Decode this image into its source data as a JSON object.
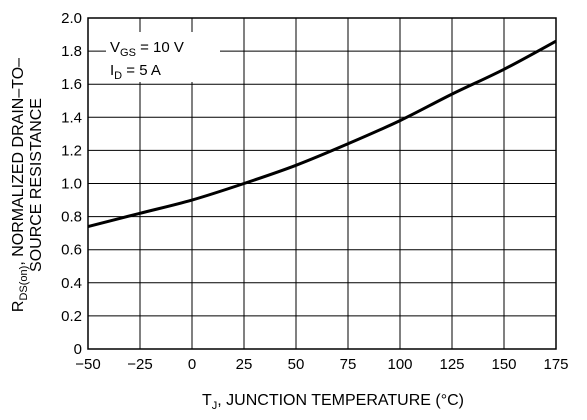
{
  "chart_data": {
    "type": "line",
    "xlabel": {
      "main": "T",
      "sub": "J",
      "rest": ", JUNCTION TEMPERATURE (°C)"
    },
    "ylabel": {
      "line1_main": "R",
      "line1_sub": "DS(on)",
      "line1_rest": ", NORMALIZED DRAIN–TO–",
      "line2": "SOURCE RESISTANCE"
    },
    "xlim": [
      -50,
      175
    ],
    "ylim": [
      0,
      2.0
    ],
    "x_ticks": [
      -50,
      -25,
      0,
      25,
      50,
      75,
      100,
      125,
      150,
      175
    ],
    "x_tick_labels": [
      "−50",
      "−25",
      "0",
      "25",
      "50",
      "75",
      "100",
      "125",
      "150",
      "175"
    ],
    "y_ticks": [
      0,
      0.2,
      0.4,
      0.6,
      0.8,
      1.0,
      1.2,
      1.4,
      1.6,
      1.8,
      2.0
    ],
    "y_tick_labels": [
      "0",
      "0.2",
      "0.4",
      "0.6",
      "0.8",
      "1.0",
      "1.2",
      "1.4",
      "1.6",
      "1.8",
      "2.0"
    ],
    "grid": true,
    "annotations": [
      {
        "main": "V",
        "sub": "GS",
        "rest": " = 10 V"
      },
      {
        "main": "I",
        "sub": "D",
        "rest": " = 5 A"
      }
    ],
    "series": [
      {
        "x": [
          -50,
          -25,
          0,
          25,
          50,
          75,
          100,
          125,
          150,
          175
        ],
        "y": [
          0.74,
          0.82,
          0.9,
          1.0,
          1.11,
          1.24,
          1.38,
          1.54,
          1.69,
          1.86
        ]
      }
    ]
  }
}
